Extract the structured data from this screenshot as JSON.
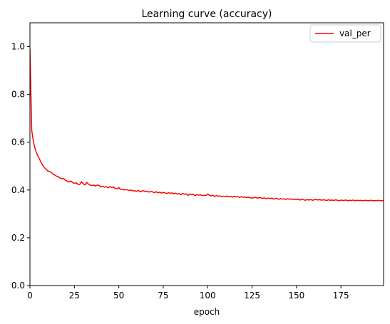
{
  "chart_data": {
    "type": "line",
    "title": "Learning curve (accuracy)",
    "xlabel": "epoch",
    "ylabel": "",
    "xlim": [
      0,
      199
    ],
    "ylim": [
      0.0,
      1.1
    ],
    "xticks": [
      "0",
      "25",
      "50",
      "75",
      "100",
      "125",
      "150",
      "175"
    ],
    "yticks": [
      "0.0",
      "0.2",
      "0.4",
      "0.6",
      "0.8",
      "1.0"
    ],
    "grid": false,
    "legend": {
      "position": "top-right"
    },
    "series": [
      {
        "name": "val_per",
        "color": "#ff0000",
        "x": [
          0,
          1,
          2,
          3,
          4,
          5,
          6,
          7,
          8,
          9,
          10,
          11,
          12,
          13,
          14,
          15,
          16,
          17,
          18,
          19,
          20,
          21,
          22,
          23,
          24,
          25,
          26,
          27,
          28,
          29,
          30,
          31,
          32,
          33,
          34,
          35,
          36,
          37,
          38,
          39,
          40,
          41,
          42,
          43,
          44,
          45,
          46,
          47,
          48,
          49,
          50,
          51,
          52,
          53,
          54,
          55,
          56,
          57,
          58,
          59,
          60,
          61,
          62,
          63,
          64,
          65,
          66,
          67,
          68,
          69,
          70,
          71,
          72,
          73,
          74,
          75,
          76,
          77,
          78,
          79,
          80,
          81,
          82,
          83,
          84,
          85,
          86,
          87,
          88,
          89,
          90,
          91,
          92,
          93,
          94,
          95,
          96,
          97,
          98,
          99,
          100,
          101,
          102,
          103,
          104,
          105,
          106,
          107,
          108,
          109,
          110,
          111,
          112,
          113,
          114,
          115,
          116,
          117,
          118,
          119,
          120,
          121,
          122,
          123,
          124,
          125,
          126,
          127,
          128,
          129,
          130,
          131,
          132,
          133,
          134,
          135,
          136,
          137,
          138,
          139,
          140,
          141,
          142,
          143,
          144,
          145,
          146,
          147,
          148,
          149,
          150,
          151,
          152,
          153,
          154,
          155,
          156,
          157,
          158,
          159,
          160,
          161,
          162,
          163,
          164,
          165,
          166,
          167,
          168,
          169,
          170,
          171,
          172,
          173,
          174,
          175,
          176,
          177,
          178,
          179,
          180,
          181,
          182,
          183,
          184,
          185,
          186,
          187,
          188,
          189,
          190,
          191,
          192,
          193,
          194,
          195,
          196,
          197,
          198,
          199
        ],
        "values": [
          0.99,
          0.65,
          0.6,
          0.57,
          0.55,
          0.535,
          0.52,
          0.505,
          0.495,
          0.487,
          0.48,
          0.477,
          0.474,
          0.467,
          0.462,
          0.458,
          0.455,
          0.45,
          0.447,
          0.448,
          0.44,
          0.437,
          0.433,
          0.438,
          0.431,
          0.428,
          0.43,
          0.424,
          0.423,
          0.435,
          0.426,
          0.421,
          0.432,
          0.424,
          0.42,
          0.419,
          0.42,
          0.417,
          0.421,
          0.418,
          0.413,
          0.416,
          0.412,
          0.414,
          0.409,
          0.415,
          0.41,
          0.413,
          0.406,
          0.405,
          0.41,
          0.402,
          0.403,
          0.4,
          0.402,
          0.4,
          0.398,
          0.4,
          0.396,
          0.397,
          0.394,
          0.399,
          0.392,
          0.396,
          0.397,
          0.393,
          0.395,
          0.391,
          0.394,
          0.392,
          0.389,
          0.393,
          0.388,
          0.391,
          0.387,
          0.39,
          0.388,
          0.385,
          0.389,
          0.386,
          0.388,
          0.384,
          0.387,
          0.383,
          0.385,
          0.38,
          0.386,
          0.382,
          0.384,
          0.377,
          0.383,
          0.38,
          0.382,
          0.376,
          0.381,
          0.378,
          0.38,
          0.376,
          0.378,
          0.377,
          0.383,
          0.378,
          0.375,
          0.378,
          0.373,
          0.377,
          0.374,
          0.375,
          0.372,
          0.374,
          0.372,
          0.375,
          0.371,
          0.373,
          0.37,
          0.374,
          0.371,
          0.372,
          0.369,
          0.372,
          0.369,
          0.371,
          0.368,
          0.37,
          0.367,
          0.366,
          0.368,
          0.369,
          0.366,
          0.368,
          0.367,
          0.365,
          0.367,
          0.363,
          0.366,
          0.364,
          0.366,
          0.362,
          0.364,
          0.365,
          0.361,
          0.364,
          0.362,
          0.363,
          0.36,
          0.364,
          0.361,
          0.363,
          0.36,
          0.362,
          0.36,
          0.362,
          0.358,
          0.361,
          0.359,
          0.357,
          0.36,
          0.358,
          0.36,
          0.357,
          0.359,
          0.361,
          0.358,
          0.36,
          0.357,
          0.359,
          0.358,
          0.356,
          0.359,
          0.357,
          0.358,
          0.356,
          0.359,
          0.357,
          0.355,
          0.358,
          0.356,
          0.357,
          0.358,
          0.355,
          0.357,
          0.356,
          0.358,
          0.355,
          0.357,
          0.356,
          0.357,
          0.355,
          0.356,
          0.357,
          0.355,
          0.356,
          0.357,
          0.355,
          0.356,
          0.355,
          0.357,
          0.355,
          0.356,
          0.355
        ]
      }
    ]
  }
}
